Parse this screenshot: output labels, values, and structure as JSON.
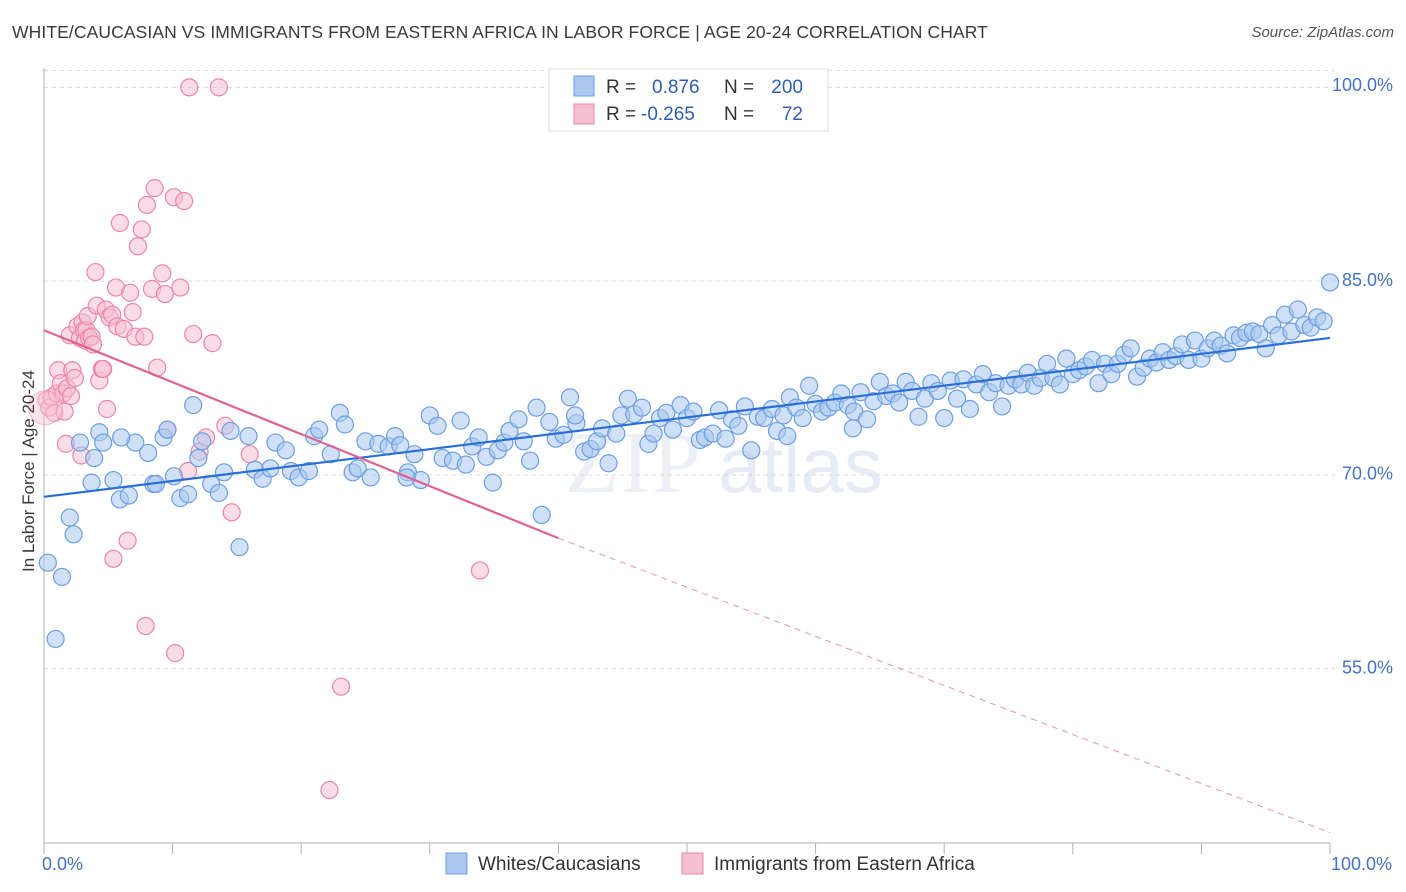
{
  "title": "WHITE/CAUCASIAN VS IMMIGRANTS FROM EASTERN AFRICA IN LABOR FORCE | AGE 20-24 CORRELATION CHART",
  "source": "Source: ZipAtlas.com",
  "chart_data": {
    "type": "scatter",
    "title": "WHITE/CAUCASIAN VS IMMIGRANTS FROM EASTERN AFRICA IN LABOR FORCE | AGE 20-24 CORRELATION CHART",
    "ylabel": "In Labor Force | Age 20-24",
    "xlabel": "",
    "xlim": [
      0,
      100
    ],
    "ylim": [
      41.5,
      101.5
    ],
    "x_tick_labels": {
      "left": "0.0%",
      "right": "100.0%"
    },
    "y_ticks": [
      {
        "value": 100,
        "label": "100.0%"
      },
      {
        "value": 85,
        "label": "85.0%"
      },
      {
        "value": 70,
        "label": "70.0%"
      },
      {
        "value": 55,
        "label": "55.0%"
      }
    ],
    "grid": "horizontal dashed",
    "watermark": "ZIPatlas",
    "legend": {
      "position": "top-center",
      "rows": [
        {
          "r_label": "R =",
          "r": "0.876",
          "n_label": "N =",
          "n": "200"
        },
        {
          "r_label": "R =",
          "r": "-0.265",
          "n_label": "N =",
          "n": "72"
        }
      ]
    },
    "series": [
      {
        "name": "Whites/Caucasians",
        "color": "#6c9ee3",
        "fill": "#aac8f0",
        "r": 0.876,
        "n": 200,
        "trend": {
          "x": [
            0,
            100
          ],
          "y": [
            68.3,
            80.6
          ]
        },
        "points": [
          [
            0.3,
            63.2
          ],
          [
            0.9,
            57.3
          ],
          [
            1.4,
            62.1
          ],
          [
            2.0,
            66.7
          ],
          [
            2.3,
            65.4
          ],
          [
            2.8,
            72.5
          ],
          [
            3.7,
            69.4
          ],
          [
            3.9,
            71.3
          ],
          [
            4.3,
            73.3
          ],
          [
            4.6,
            72.5
          ],
          [
            5.4,
            69.6
          ],
          [
            5.9,
            68.1
          ],
          [
            6.6,
            68.4
          ],
          [
            7.1,
            72.5
          ],
          [
            8.1,
            71.7
          ],
          [
            8.5,
            69.3
          ],
          [
            8.7,
            69.3
          ],
          [
            9.3,
            72.9
          ],
          [
            9.6,
            73.5
          ],
          [
            10.1,
            69.9
          ],
          [
            10.6,
            68.2
          ],
          [
            11.2,
            68.5
          ],
          [
            11.6,
            75.4
          ],
          [
            12.0,
            71.3
          ],
          [
            12.3,
            72.6
          ],
          [
            13.0,
            69.3
          ],
          [
            13.6,
            68.6
          ],
          [
            14.0,
            70.2
          ],
          [
            14.5,
            73.4
          ],
          [
            15.2,
            64.4
          ],
          [
            15.9,
            73.0
          ],
          [
            16.4,
            70.4
          ],
          [
            17.0,
            69.7
          ],
          [
            17.6,
            70.5
          ],
          [
            18.0,
            72.5
          ],
          [
            18.8,
            71.9
          ],
          [
            19.2,
            70.3
          ],
          [
            19.8,
            69.8
          ],
          [
            20.6,
            70.3
          ],
          [
            21.0,
            73.0
          ],
          [
            21.4,
            73.5
          ],
          [
            22.3,
            71.6
          ],
          [
            23.0,
            74.8
          ],
          [
            23.4,
            73.9
          ],
          [
            24.0,
            70.2
          ],
          [
            24.4,
            70.5
          ],
          [
            25.0,
            72.6
          ],
          [
            25.4,
            69.8
          ],
          [
            26.0,
            72.4
          ],
          [
            26.8,
            72.2
          ],
          [
            27.3,
            73.0
          ],
          [
            27.7,
            72.3
          ],
          [
            28.3,
            70.2
          ],
          [
            28.8,
            71.6
          ],
          [
            29.3,
            69.6
          ],
          [
            30.0,
            74.6
          ],
          [
            30.6,
            73.8
          ],
          [
            31.0,
            71.3
          ],
          [
            31.8,
            71.1
          ],
          [
            32.4,
            74.2
          ],
          [
            32.8,
            70.8
          ],
          [
            33.3,
            72.2
          ],
          [
            33.8,
            72.9
          ],
          [
            34.4,
            71.4
          ],
          [
            34.9,
            69.4
          ],
          [
            35.3,
            71.9
          ],
          [
            35.8,
            72.5
          ],
          [
            36.2,
            73.4
          ],
          [
            36.9,
            74.3
          ],
          [
            37.3,
            72.6
          ],
          [
            37.8,
            71.1
          ],
          [
            38.3,
            75.2
          ],
          [
            38.7,
            66.9
          ],
          [
            39.3,
            74.1
          ],
          [
            39.8,
            72.8
          ],
          [
            40.4,
            73.1
          ],
          [
            40.9,
            76.0
          ],
          [
            41.4,
            74.0
          ],
          [
            42.0,
            71.8
          ],
          [
            42.5,
            72.0
          ],
          [
            43.0,
            72.6
          ],
          [
            43.4,
            73.6
          ],
          [
            43.9,
            70.9
          ],
          [
            44.5,
            73.2
          ],
          [
            44.9,
            74.6
          ],
          [
            45.4,
            75.9
          ],
          [
            45.9,
            74.7
          ],
          [
            46.5,
            75.2
          ],
          [
            47.0,
            72.4
          ],
          [
            47.4,
            73.2
          ],
          [
            47.9,
            74.4
          ],
          [
            48.4,
            74.8
          ],
          [
            48.9,
            73.5
          ],
          [
            49.5,
            75.4
          ],
          [
            50.0,
            74.4
          ],
          [
            50.5,
            74.9
          ],
          [
            51.0,
            72.7
          ],
          [
            51.4,
            72.9
          ],
          [
            52.0,
            73.2
          ],
          [
            52.5,
            75.0
          ],
          [
            53.0,
            72.8
          ],
          [
            53.5,
            74.3
          ],
          [
            54.0,
            73.8
          ],
          [
            54.5,
            75.3
          ],
          [
            55.0,
            71.9
          ],
          [
            55.5,
            74.5
          ],
          [
            56.0,
            74.4
          ],
          [
            56.6,
            75.1
          ],
          [
            57.0,
            73.4
          ],
          [
            57.5,
            74.6
          ],
          [
            58.0,
            76.0
          ],
          [
            58.5,
            75.2
          ],
          [
            59.0,
            74.4
          ],
          [
            59.5,
            76.9
          ],
          [
            60.0,
            75.5
          ],
          [
            60.5,
            74.9
          ],
          [
            61.0,
            75.2
          ],
          [
            61.5,
            75.6
          ],
          [
            62.0,
            76.3
          ],
          [
            62.5,
            75.4
          ],
          [
            63.0,
            74.9
          ],
          [
            63.5,
            76.4
          ],
          [
            64.0,
            74.3
          ],
          [
            64.5,
            75.7
          ],
          [
            65.0,
            77.2
          ],
          [
            65.5,
            76.1
          ],
          [
            66.0,
            76.3
          ],
          [
            66.5,
            75.6
          ],
          [
            67.0,
            77.2
          ],
          [
            67.5,
            76.5
          ],
          [
            68.0,
            74.5
          ],
          [
            68.5,
            75.9
          ],
          [
            69.0,
            77.1
          ],
          [
            69.5,
            76.5
          ],
          [
            70.0,
            74.4
          ],
          [
            70.5,
            77.3
          ],
          [
            71.0,
            75.9
          ],
          [
            71.5,
            77.4
          ],
          [
            72.0,
            75.1
          ],
          [
            72.5,
            77.0
          ],
          [
            73.0,
            77.8
          ],
          [
            73.5,
            76.4
          ],
          [
            74.0,
            77.1
          ],
          [
            74.5,
            75.3
          ],
          [
            75.0,
            76.9
          ],
          [
            75.5,
            77.4
          ],
          [
            76.0,
            77.0
          ],
          [
            76.5,
            77.9
          ],
          [
            77.0,
            76.9
          ],
          [
            77.5,
            77.5
          ],
          [
            78.0,
            78.6
          ],
          [
            78.5,
            77.5
          ],
          [
            79.0,
            77.0
          ],
          [
            79.5,
            79.0
          ],
          [
            80.0,
            77.8
          ],
          [
            80.5,
            78.1
          ],
          [
            81.0,
            78.4
          ],
          [
            81.5,
            78.9
          ],
          [
            82.0,
            77.1
          ],
          [
            82.5,
            78.6
          ],
          [
            83.0,
            77.8
          ],
          [
            83.5,
            78.6
          ],
          [
            84.0,
            79.3
          ],
          [
            84.5,
            79.8
          ],
          [
            85.0,
            77.6
          ],
          [
            85.5,
            78.3
          ],
          [
            86.0,
            79.0
          ],
          [
            86.5,
            78.7
          ],
          [
            87.0,
            79.5
          ],
          [
            87.5,
            78.9
          ],
          [
            88.0,
            79.2
          ],
          [
            88.5,
            80.1
          ],
          [
            89.0,
            78.9
          ],
          [
            89.5,
            80.4
          ],
          [
            90.0,
            79.0
          ],
          [
            90.5,
            79.8
          ],
          [
            91.0,
            80.4
          ],
          [
            91.5,
            80.0
          ],
          [
            92.0,
            79.4
          ],
          [
            92.5,
            80.8
          ],
          [
            93.0,
            80.6
          ],
          [
            93.5,
            81.0
          ],
          [
            94.0,
            81.1
          ],
          [
            94.5,
            80.9
          ],
          [
            95.0,
            79.8
          ],
          [
            95.5,
            81.6
          ],
          [
            96.0,
            80.8
          ],
          [
            96.5,
            82.4
          ],
          [
            97.0,
            81.1
          ],
          [
            97.5,
            82.8
          ],
          [
            98.0,
            81.6
          ],
          [
            98.5,
            81.4
          ],
          [
            99.0,
            82.2
          ],
          [
            99.5,
            81.9
          ],
          [
            100.0,
            84.9
          ],
          [
            6.0,
            72.9
          ],
          [
            28.2,
            69.8
          ],
          [
            41.3,
            74.6
          ],
          [
            57.8,
            73.0
          ],
          [
            62.9,
            73.6
          ]
        ]
      },
      {
        "name": "Immigrants from Eastern Africa",
        "color": "#ec85a8",
        "fill": "#f6c0d3",
        "r": -0.265,
        "n": 72,
        "trend": {
          "x": [
            0,
            40
          ],
          "y": [
            81.2,
            65.1
          ]
        },
        "trend_dashed": {
          "x": [
            40,
            100
          ],
          "y": [
            65.1,
            42.3
          ]
        },
        "points": [
          [
            0.2,
            75.8
          ],
          [
            0.4,
            75.2
          ],
          [
            0.6,
            76.0
          ],
          [
            0.8,
            74.8
          ],
          [
            1.0,
            76.3
          ],
          [
            1.1,
            78.1
          ],
          [
            1.3,
            77.1
          ],
          [
            1.5,
            76.3
          ],
          [
            1.6,
            74.9
          ],
          [
            1.8,
            76.7
          ],
          [
            2.0,
            80.8
          ],
          [
            2.1,
            76.1
          ],
          [
            2.2,
            78.1
          ],
          [
            2.4,
            77.5
          ],
          [
            2.6,
            81.5
          ],
          [
            2.8,
            80.6
          ],
          [
            3.0,
            81.8
          ],
          [
            3.1,
            81.2
          ],
          [
            3.2,
            80.4
          ],
          [
            3.3,
            81.2
          ],
          [
            3.4,
            82.3
          ],
          [
            3.5,
            80.6
          ],
          [
            3.7,
            80.7
          ],
          [
            3.8,
            80.1
          ],
          [
            4.0,
            85.7
          ],
          [
            4.1,
            83.1
          ],
          [
            4.3,
            77.3
          ],
          [
            4.5,
            78.2
          ],
          [
            4.6,
            78.2
          ],
          [
            4.8,
            82.8
          ],
          [
            4.9,
            75.1
          ],
          [
            5.1,
            82.2
          ],
          [
            5.3,
            82.4
          ],
          [
            5.6,
            84.5
          ],
          [
            5.7,
            81.5
          ],
          [
            5.9,
            89.5
          ],
          [
            6.2,
            81.3
          ],
          [
            6.5,
            64.9
          ],
          [
            6.7,
            84.1
          ],
          [
            6.9,
            82.6
          ],
          [
            7.1,
            80.7
          ],
          [
            7.3,
            87.7
          ],
          [
            7.6,
            89.0
          ],
          [
            7.8,
            80.7
          ],
          [
            8.0,
            90.9
          ],
          [
            8.4,
            84.4
          ],
          [
            8.6,
            92.2
          ],
          [
            8.8,
            78.3
          ],
          [
            9.2,
            85.6
          ],
          [
            9.4,
            84.0
          ],
          [
            9.6,
            73.5
          ],
          [
            10.1,
            91.5
          ],
          [
            10.6,
            84.5
          ],
          [
            10.9,
            91.2
          ],
          [
            11.2,
            70.3
          ],
          [
            11.6,
            80.9
          ],
          [
            12.1,
            71.8
          ],
          [
            12.6,
            72.9
          ],
          [
            13.1,
            80.2
          ],
          [
            13.6,
            100.0
          ],
          [
            14.1,
            73.8
          ],
          [
            14.6,
            67.1
          ],
          [
            5.4,
            63.5
          ],
          [
            7.9,
            58.3
          ],
          [
            10.2,
            56.2
          ],
          [
            16.0,
            71.6
          ],
          [
            1.7,
            72.4
          ],
          [
            2.9,
            71.5
          ],
          [
            23.1,
            53.6
          ],
          [
            22.2,
            45.6
          ],
          [
            33.9,
            62.6
          ],
          [
            11.3,
            100.0
          ]
        ]
      }
    ]
  },
  "legend_bottom": {
    "series1": "Whites/Caucasians",
    "series2": "Immigrants from Eastern Africa"
  }
}
